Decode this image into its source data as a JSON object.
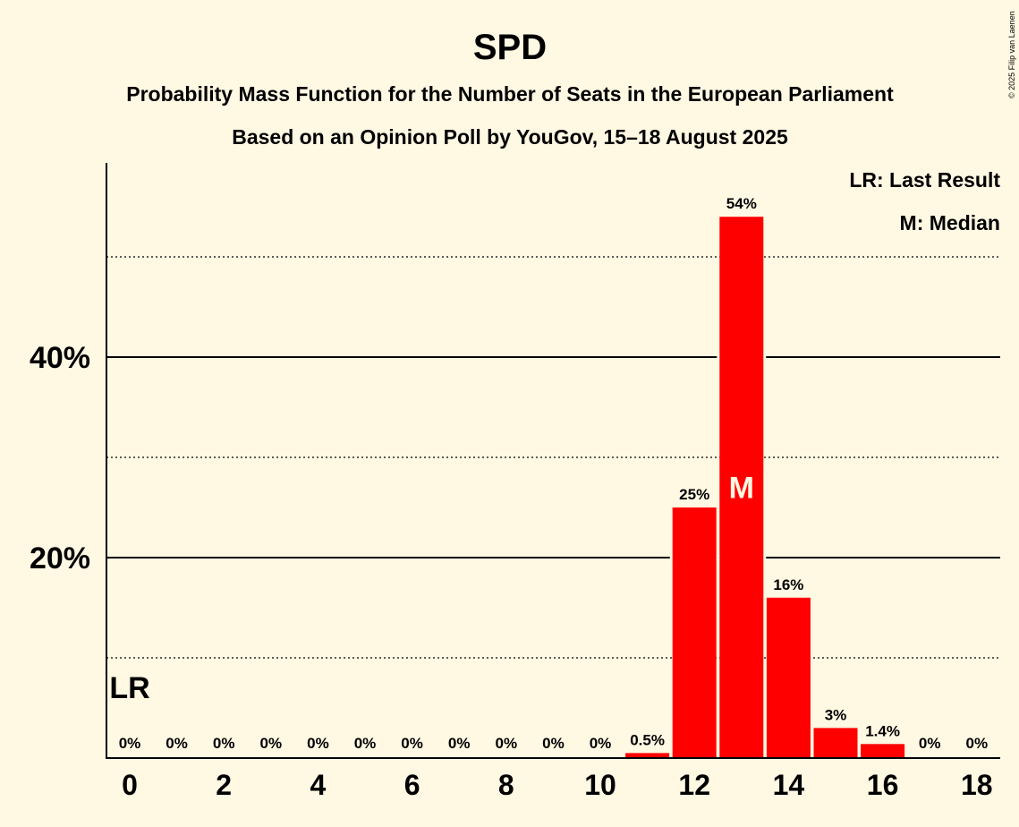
{
  "header": {
    "title": "SPD",
    "subtitle1": "Probability Mass Function for the Number of Seats in the European Parliament",
    "subtitle2": "Based on an Opinion Poll by YouGov, 15–18 August 2025"
  },
  "legend": {
    "last_result": "LR: Last Result",
    "median": "M: Median"
  },
  "copyright": "© 2025 Filip van Laenen",
  "chart_data": {
    "type": "bar",
    "title": "SPD",
    "subtitle": "Probability Mass Function for the Number of Seats in the European Parliament",
    "xlabel": "",
    "ylabel": "",
    "categories": [
      0,
      1,
      2,
      3,
      4,
      5,
      6,
      7,
      8,
      9,
      10,
      11,
      12,
      13,
      14,
      15,
      16,
      17,
      18
    ],
    "values": [
      0,
      0,
      0,
      0,
      0,
      0,
      0,
      0,
      0,
      0,
      0,
      0.5,
      25,
      54,
      16,
      3,
      1.4,
      0,
      0
    ],
    "labels": [
      "0%",
      "0%",
      "0%",
      "0%",
      "0%",
      "0%",
      "0%",
      "0%",
      "0%",
      "0%",
      "0%",
      "0.5%",
      "25%",
      "54%",
      "16%",
      "3%",
      "1.4%",
      "0%",
      "0%"
    ],
    "ylim": [
      0,
      59
    ],
    "y_ticks": [
      20,
      40
    ],
    "y_tick_labels": [
      "20%",
      "40%"
    ],
    "y_minor_gridlines": [
      10,
      30,
      50
    ],
    "x_tick_labels": [
      "0",
      "2",
      "4",
      "6",
      "8",
      "10",
      "12",
      "14",
      "16",
      "18"
    ],
    "last_result_seat": 0,
    "last_result_marker": "LR",
    "median_seat": 13,
    "median_marker": "M",
    "bar_color": "#FF0000",
    "background_color": "#FFF8E3",
    "legend_position": "top-right"
  }
}
